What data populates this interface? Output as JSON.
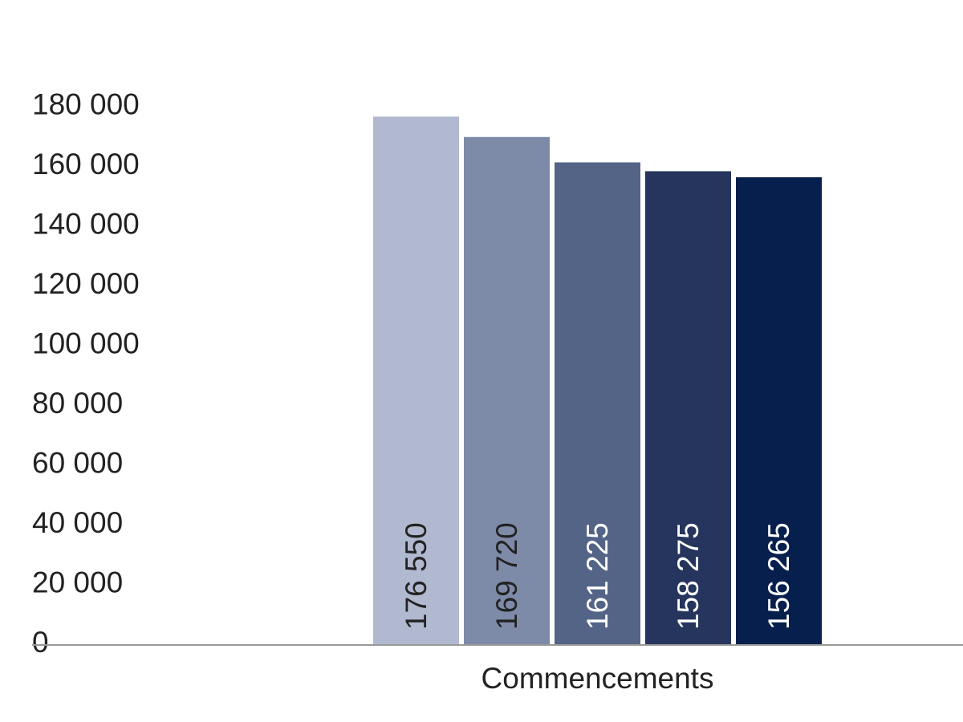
{
  "chart_data": {
    "type": "bar",
    "title": "",
    "xlabel": "",
    "ylabel": "",
    "categories": [
      "Commencements"
    ],
    "series": [
      {
        "values": [
          176550
        ],
        "label": "176 550",
        "color": "#b1b9d0",
        "label_color": "#222222"
      },
      {
        "values": [
          169720
        ],
        "label": "169 720",
        "color": "#7e8ba8",
        "label_color": "#222222"
      },
      {
        "values": [
          161225
        ],
        "label": "161 225",
        "color": "#536487",
        "label_color": "#ffffff"
      },
      {
        "values": [
          158275
        ],
        "label": "158 275",
        "color": "#26355d",
        "label_color": "#ffffff"
      },
      {
        "values": [
          156265
        ],
        "label": "156 265",
        "color": "#061f4d",
        "label_color": "#ffffff"
      }
    ],
    "ylim": [
      0,
      180000
    ],
    "y_ticks": [
      0,
      20000,
      40000,
      60000,
      80000,
      100000,
      120000,
      140000,
      160000,
      180000
    ],
    "y_tick_labels": [
      "0",
      "20 000",
      "40 000",
      "60 000",
      "80 000",
      "100 000",
      "120 000",
      "140 000",
      "160 000",
      "180 000"
    ],
    "grid": false,
    "legend": "none",
    "axis_color": "#999999"
  }
}
